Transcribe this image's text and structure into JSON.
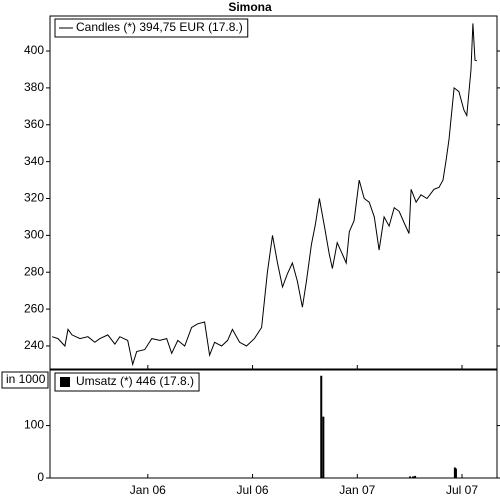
{
  "chart_data": [
    {
      "type": "line",
      "title": "Simona",
      "x": [
        2005.543,
        2005.571,
        2005.604,
        2005.619,
        2005.638,
        2005.676,
        2005.714,
        2005.747,
        2005.771,
        2005.809,
        2005.843,
        2005.866,
        2005.904,
        2005.928,
        2005.947,
        2005.985,
        2006.019,
        2006.057,
        2006.09,
        2006.114,
        2006.143,
        2006.176,
        2006.209,
        2006.238,
        2006.271,
        2006.295,
        2006.319,
        2006.352,
        2006.381,
        2006.404,
        2006.438,
        2006.471,
        2006.509,
        2006.543,
        2006.557,
        2006.571,
        2006.595,
        2006.619,
        2006.643,
        2006.666,
        2006.69,
        2006.714,
        2006.738,
        2006.757,
        2006.781,
        2006.8,
        2006.819,
        2006.843,
        2006.866,
        2006.881,
        2006.904,
        2006.928,
        2006.947,
        2006.962,
        2006.985,
        2007.009,
        2007.033,
        2007.057,
        2007.081,
        2007.104,
        2007.128,
        2007.152,
        2007.176,
        2007.2,
        2007.223,
        2007.247,
        2007.257,
        2007.281,
        2007.304,
        2007.333,
        2007.366,
        2007.39,
        2007.409,
        2007.423,
        2007.438,
        2007.462,
        2007.485,
        2007.509,
        2007.523,
        2007.543,
        2007.552,
        2007.562,
        2007.571
      ],
      "series": [
        {
          "name": "Candles (*) 394,75 EUR (17.8.)",
          "color": "#000000",
          "values": [
            245,
            244,
            240,
            249,
            246,
            244,
            245,
            242,
            244,
            246,
            241,
            245,
            243,
            230,
            237,
            238,
            244,
            243,
            244,
            236,
            243,
            240,
            250,
            252,
            253,
            235,
            242,
            240,
            243,
            249,
            242,
            240,
            244,
            250,
            265,
            280,
            300,
            285,
            272,
            279,
            285,
            275,
            261,
            275,
            295,
            306,
            320,
            305,
            290,
            282,
            296,
            290,
            285,
            302,
            308,
            330,
            320,
            318,
            310,
            292,
            310,
            305,
            315,
            313,
            307,
            301,
            325,
            318,
            322,
            320,
            325,
            326,
            330,
            340,
            352,
            380,
            378,
            368,
            365,
            390,
            415,
            395,
            394.75
          ]
        }
      ],
      "xlim": [
        2005.533,
        2007.667
      ],
      "ylim": [
        227.5,
        419
      ],
      "yticks": [
        240,
        260,
        280,
        300,
        320,
        340,
        360,
        380,
        400
      ]
    },
    {
      "type": "bar",
      "unit_label": "in 1000",
      "x": [
        2006.828,
        2006.838,
        2007.252,
        2007.266,
        2007.276,
        2007.466,
        2007.471
      ],
      "series": [
        {
          "name": "Umsatz (*) 446 (17.8.)",
          "color": "#000000",
          "values": [
            195,
            117,
            3,
            3,
            4,
            20,
            18
          ]
        }
      ],
      "xlim": [
        2005.533,
        2007.667
      ],
      "xticks": [
        {
          "value": 2006.0,
          "label": "Jan 06"
        },
        {
          "value": 2006.5,
          "label": "Jul 06"
        },
        {
          "value": 2007.0,
          "label": "Jan 07"
        },
        {
          "value": 2007.5,
          "label": "Jul 07"
        }
      ],
      "ylim": [
        0,
        206
      ],
      "yticks": [
        0,
        100
      ]
    }
  ]
}
